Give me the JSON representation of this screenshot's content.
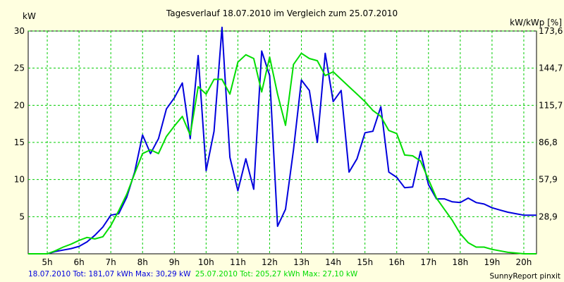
{
  "chart_data": {
    "type": "line",
    "title": "Tagesverlauf 18.07.2010 im Vergleich zum 25.07.2010",
    "ylabel": "kW",
    "y2label": "kW/kWp [%]",
    "xlim": [
      4.4,
      20.4
    ],
    "ylim": [
      0,
      30
    ],
    "xticks": [
      {
        "x": 5,
        "label": "5h"
      },
      {
        "x": 6,
        "label": "6h"
      },
      {
        "x": 7,
        "label": "7h"
      },
      {
        "x": 8,
        "label": "8h"
      },
      {
        "x": 9,
        "label": "9h"
      },
      {
        "x": 10,
        "label": "10h"
      },
      {
        "x": 11,
        "label": "11h"
      },
      {
        "x": 12,
        "label": "12h"
      },
      {
        "x": 13,
        "label": "13h"
      },
      {
        "x": 14,
        "label": "14h"
      },
      {
        "x": 15,
        "label": "15h"
      },
      {
        "x": 16,
        "label": "16h"
      },
      {
        "x": 17,
        "label": "17h"
      },
      {
        "x": 18,
        "label": "18h"
      },
      {
        "x": 19,
        "label": "19h"
      },
      {
        "x": 20,
        "label": "20h"
      }
    ],
    "yticks": [
      {
        "y": 5,
        "label": "5"
      },
      {
        "y": 10,
        "label": "10"
      },
      {
        "y": 15,
        "label": "15"
      },
      {
        "y": 20,
        "label": "20"
      },
      {
        "y": 25,
        "label": "25"
      },
      {
        "y": 30,
        "label": "30"
      }
    ],
    "y2ticks": [
      {
        "y": 5,
        "label": "28,9"
      },
      {
        "y": 10,
        "label": "57,9"
      },
      {
        "y": 15,
        "label": "86,8"
      },
      {
        "y": 20,
        "label": "115,7"
      },
      {
        "y": 25,
        "label": "144,7"
      },
      {
        "y": 30,
        "label": "173,6"
      }
    ],
    "grid": true,
    "series": [
      {
        "name": "18.07.2010",
        "color": "#0000DD",
        "points": [
          [
            4.4,
            0
          ],
          [
            5.0,
            0
          ],
          [
            5.25,
            0.3
          ],
          [
            5.5,
            0.5
          ],
          [
            5.75,
            0.7
          ],
          [
            6.0,
            1.0
          ],
          [
            6.25,
            1.6
          ],
          [
            6.5,
            2.5
          ],
          [
            6.75,
            3.6
          ],
          [
            7.0,
            5.2
          ],
          [
            7.25,
            5.4
          ],
          [
            7.5,
            7.6
          ],
          [
            7.75,
            11.0
          ],
          [
            8.0,
            16.0
          ],
          [
            8.25,
            13.5
          ],
          [
            8.5,
            15.5
          ],
          [
            8.75,
            19.5
          ],
          [
            9.0,
            21.0
          ],
          [
            9.25,
            23.0
          ],
          [
            9.5,
            15.5
          ],
          [
            9.75,
            26.7
          ],
          [
            10.0,
            11.2
          ],
          [
            10.25,
            16.5
          ],
          [
            10.5,
            30.5
          ],
          [
            10.75,
            13.0
          ],
          [
            11.0,
            8.5
          ],
          [
            11.25,
            12.8
          ],
          [
            11.5,
            8.7
          ],
          [
            11.75,
            27.3
          ],
          [
            12.0,
            24.0
          ],
          [
            12.25,
            3.7
          ],
          [
            12.5,
            6.0
          ],
          [
            12.75,
            14.0
          ],
          [
            13.0,
            23.4
          ],
          [
            13.25,
            22.0
          ],
          [
            13.5,
            15.0
          ],
          [
            13.75,
            27.0
          ],
          [
            14.0,
            20.5
          ],
          [
            14.25,
            22.0
          ],
          [
            14.5,
            11.0
          ],
          [
            14.75,
            12.8
          ],
          [
            15.0,
            16.3
          ],
          [
            15.25,
            16.5
          ],
          [
            15.5,
            19.8
          ],
          [
            15.75,
            11.0
          ],
          [
            16.0,
            10.3
          ],
          [
            16.25,
            8.9
          ],
          [
            16.5,
            9.0
          ],
          [
            16.75,
            13.8
          ],
          [
            17.0,
            9.3
          ],
          [
            17.25,
            7.4
          ],
          [
            17.5,
            7.4
          ],
          [
            17.75,
            7.0
          ],
          [
            18.0,
            6.9
          ],
          [
            18.25,
            7.5
          ],
          [
            18.5,
            6.9
          ],
          [
            18.75,
            6.7
          ],
          [
            19.0,
            6.2
          ],
          [
            19.25,
            5.9
          ],
          [
            19.5,
            5.6
          ],
          [
            19.75,
            5.4
          ],
          [
            20.0,
            5.2
          ],
          [
            20.4,
            5.2
          ]
        ]
      },
      {
        "name": "25.07.2010",
        "color": "#00DD00",
        "points": [
          [
            4.4,
            0
          ],
          [
            5.0,
            0
          ],
          [
            5.25,
            0.4
          ],
          [
            5.5,
            0.9
          ],
          [
            5.75,
            1.3
          ],
          [
            6.0,
            1.8
          ],
          [
            6.25,
            2.2
          ],
          [
            6.5,
            2.0
          ],
          [
            6.75,
            2.3
          ],
          [
            7.0,
            3.8
          ],
          [
            7.25,
            5.8
          ],
          [
            7.5,
            8.0
          ],
          [
            7.75,
            10.8
          ],
          [
            8.0,
            13.5
          ],
          [
            8.25,
            14.0
          ],
          [
            8.5,
            13.5
          ],
          [
            8.75,
            15.8
          ],
          [
            9.0,
            17.2
          ],
          [
            9.25,
            18.5
          ],
          [
            9.5,
            16.0
          ],
          [
            9.75,
            22.5
          ],
          [
            10.0,
            21.5
          ],
          [
            10.25,
            23.5
          ],
          [
            10.5,
            23.5
          ],
          [
            10.75,
            21.5
          ],
          [
            11.0,
            25.8
          ],
          [
            11.25,
            26.8
          ],
          [
            11.5,
            26.3
          ],
          [
            11.75,
            21.8
          ],
          [
            12.0,
            26.5
          ],
          [
            12.25,
            21.5
          ],
          [
            12.5,
            17.3
          ],
          [
            12.75,
            25.5
          ],
          [
            13.0,
            27.0
          ],
          [
            13.25,
            26.3
          ],
          [
            13.5,
            26.0
          ],
          [
            13.75,
            24.0
          ],
          [
            14.0,
            24.5
          ],
          [
            14.25,
            23.5
          ],
          [
            14.5,
            22.5
          ],
          [
            14.75,
            21.5
          ],
          [
            15.0,
            20.5
          ],
          [
            15.25,
            19.3
          ],
          [
            15.5,
            18.5
          ],
          [
            15.75,
            16.6
          ],
          [
            16.0,
            16.2
          ],
          [
            16.25,
            13.3
          ],
          [
            16.5,
            13.2
          ],
          [
            16.75,
            12.5
          ],
          [
            17.0,
            10.0
          ],
          [
            17.25,
            7.5
          ],
          [
            17.5,
            6.0
          ],
          [
            17.75,
            4.5
          ],
          [
            18.0,
            2.7
          ],
          [
            18.25,
            1.5
          ],
          [
            18.5,
            0.9
          ],
          [
            18.75,
            0.9
          ],
          [
            19.0,
            0.6
          ],
          [
            19.25,
            0.4
          ],
          [
            19.5,
            0.2
          ],
          [
            19.75,
            0.1
          ],
          [
            20.0,
            0.0
          ],
          [
            20.4,
            0.0
          ]
        ]
      }
    ],
    "footer": {
      "blue_text": "18.07.2010 Tot: 181,07 kWh Max: 30,29 kW",
      "green_text": "25.07.2010 Tot: 205,27 kWh Max: 27,10 kW",
      "brand": "SunnyReport pinxit"
    },
    "colors": {
      "background": "#FFFFE0",
      "plot_background": "#FFFFFF",
      "grid": "#00CC00",
      "blue": "#0000DD",
      "green": "#00DD00"
    }
  }
}
